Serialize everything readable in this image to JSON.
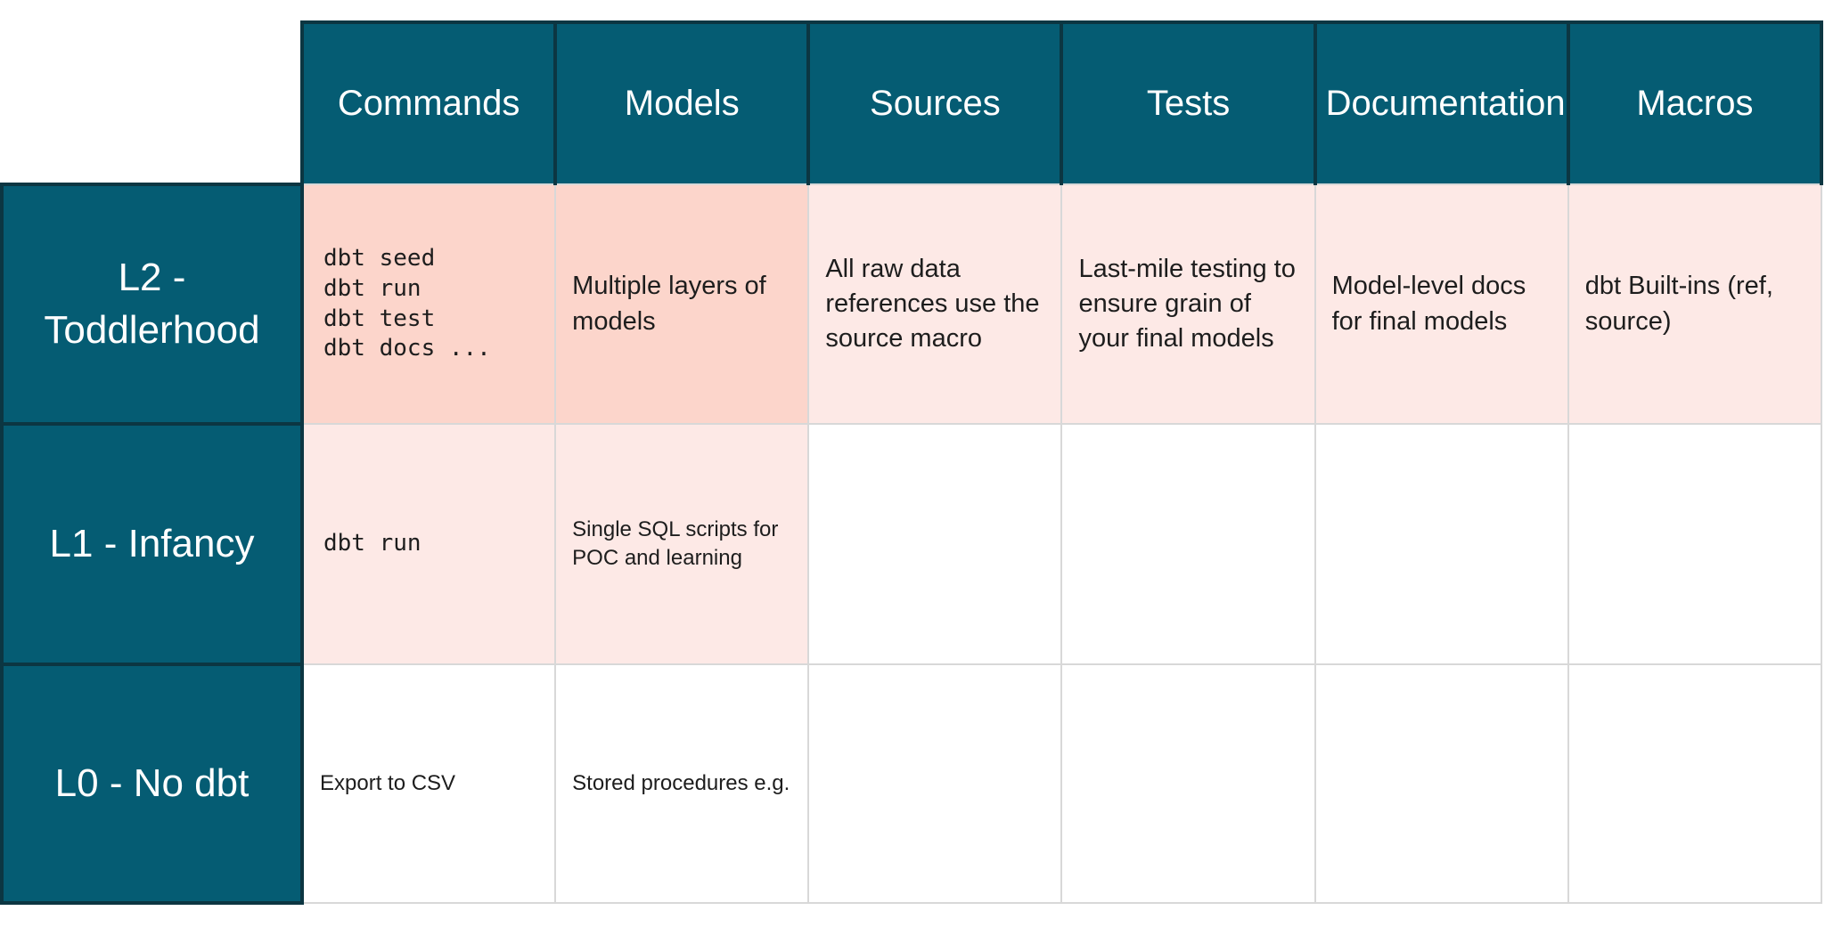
{
  "colors": {
    "teal": "#055C73",
    "teal_dark_border": "#0C3642",
    "gridline_gray": "#D8D8D8",
    "salmon_pink": "#FCD5CB",
    "blush_pink": "#FDE9E6",
    "white": "#FFFFFF",
    "header_text": "#FFFFFF",
    "body_text": "#1D1D1D"
  },
  "chart_data": {
    "type": "table",
    "columns": [
      "Commands",
      "Models",
      "Sources",
      "Tests",
      "Documentation",
      "Macros"
    ],
    "row_labels": [
      "L2 - Toddlerhood",
      "L1 - Infancy",
      "L0 - No dbt"
    ],
    "rows": [
      {
        "label": "L2 - Toddlerhood",
        "cells": [
          {
            "text": "dbt seed\ndbt run\ndbt test\ndbt docs ...",
            "bg": "#FCD5CB"
          },
          {
            "text": "Multiple layers of models",
            "bg": "#FCD5CB"
          },
          {
            "text": "All raw data references use the source macro",
            "bg": "#FDE9E6"
          },
          {
            "text": "Last-mile testing to ensure grain of your final models",
            "bg": "#FDE9E6"
          },
          {
            "text": "Model-level docs for final models",
            "bg": "#FDE9E6"
          },
          {
            "text": "dbt Built-ins (ref, source)",
            "bg": "#FDE9E6"
          }
        ]
      },
      {
        "label": "L1 - Infancy",
        "cells": [
          {
            "text": "dbt run",
            "bg": "#FDE9E6"
          },
          {
            "text": "Single SQL scripts for POC and learning",
            "bg": "#FDE9E6"
          },
          {
            "text": "",
            "bg": "#FFFFFF"
          },
          {
            "text": "",
            "bg": "#FFFFFF"
          },
          {
            "text": "",
            "bg": "#FFFFFF"
          },
          {
            "text": "",
            "bg": "#FFFFFF"
          }
        ]
      },
      {
        "label": "L0 - No dbt",
        "cells": [
          {
            "text": "Export to CSV",
            "bg": "#FFFFFF"
          },
          {
            "text": "Stored procedures e.g.",
            "bg": "#FFFFFF"
          },
          {
            "text": "",
            "bg": "#FFFFFF"
          },
          {
            "text": "",
            "bg": "#FFFFFF"
          },
          {
            "text": "",
            "bg": "#FFFFFF"
          },
          {
            "text": "",
            "bg": "#FFFFFF"
          }
        ]
      }
    ]
  }
}
